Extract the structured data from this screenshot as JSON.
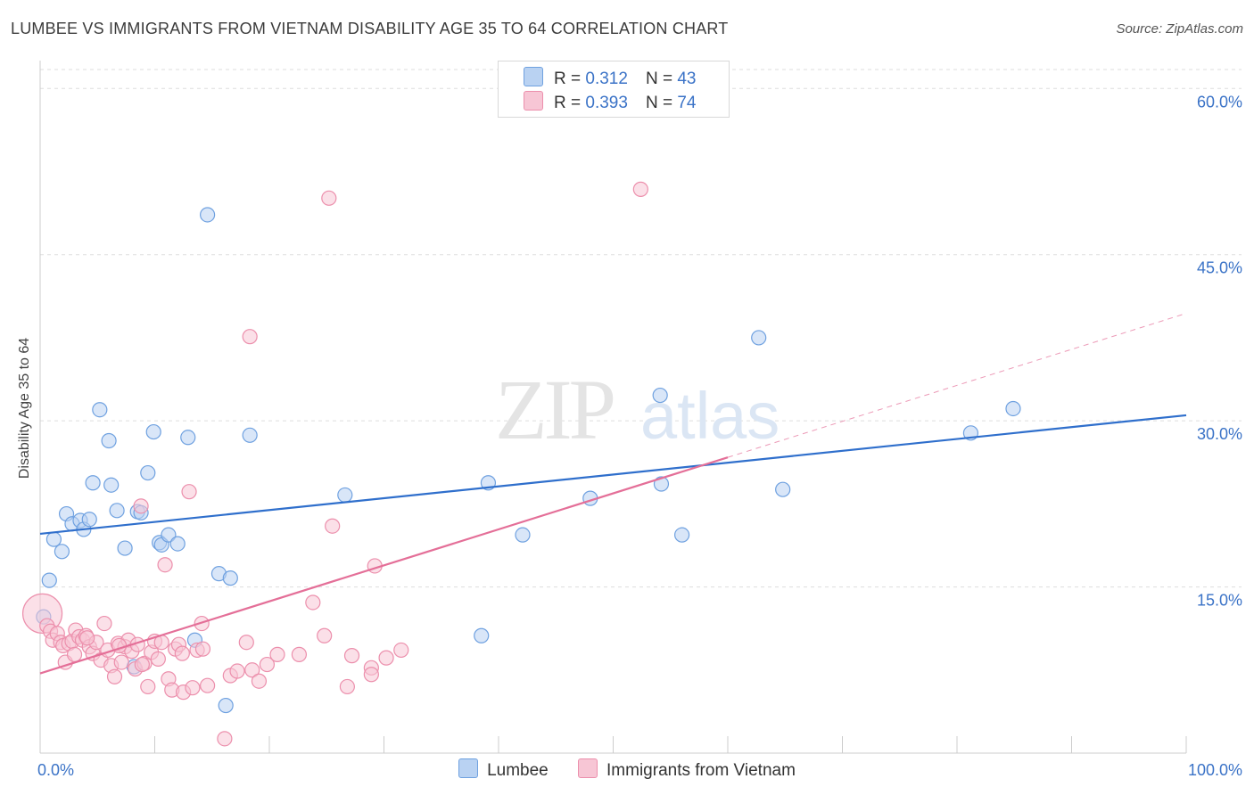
{
  "title": "LUMBEE VS IMMIGRANTS FROM VIETNAM DISABILITY AGE 35 TO 64 CORRELATION CHART",
  "source": "Source: ZipAtlas.com",
  "watermark": {
    "zip": "ZIP",
    "atlas": "atlas"
  },
  "legend": {
    "r_label": "R =",
    "n_label": "N =",
    "series": [
      {
        "r": "0.312",
        "n": "43"
      },
      {
        "r": "0.393",
        "n": "74"
      }
    ]
  },
  "chart_data": {
    "type": "scatter",
    "title": "LUMBEE VS IMMIGRANTS FROM VIETNAM DISABILITY AGE 35 TO 64 CORRELATION CHART",
    "xlabel": "",
    "ylabel": "Disability Age 35 to 64",
    "xlim": [
      0,
      100
    ],
    "ylim": [
      0,
      63
    ],
    "x_tick_labels": [
      "0.0%",
      "100.0%"
    ],
    "y_ticks": [
      15,
      30,
      45,
      60
    ],
    "y_tick_labels": [
      "15.0%",
      "30.0%",
      "45.0%",
      "60.0%"
    ],
    "grid": true,
    "legend_position": "bottom",
    "series": [
      {
        "name": "Lumbee",
        "color": "#6fa1e0",
        "fill": "#b9d2f2",
        "trend_color": "#2f6fcc",
        "trend": {
          "x0": 0,
          "y0": 19.8,
          "x1": 100,
          "y1": 30.5
        },
        "points": [
          [
            0.3,
            12.3
          ],
          [
            0.8,
            15.6
          ],
          [
            1.2,
            19.3
          ],
          [
            1.9,
            18.2
          ],
          [
            2.3,
            21.6
          ],
          [
            2.8,
            20.7
          ],
          [
            3.5,
            21.0
          ],
          [
            3.8,
            20.2
          ],
          [
            4.3,
            21.1
          ],
          [
            4.6,
            24.4
          ],
          [
            5.2,
            31.0
          ],
          [
            6.0,
            28.2
          ],
          [
            6.2,
            24.2
          ],
          [
            6.7,
            21.9
          ],
          [
            7.4,
            18.5
          ],
          [
            8.2,
            7.8
          ],
          [
            8.5,
            21.8
          ],
          [
            8.8,
            21.7
          ],
          [
            9.4,
            25.3
          ],
          [
            9.9,
            29.0
          ],
          [
            10.4,
            19.0
          ],
          [
            10.6,
            18.8
          ],
          [
            11.2,
            19.7
          ],
          [
            12.0,
            18.9
          ],
          [
            12.9,
            28.5
          ],
          [
            13.5,
            10.2
          ],
          [
            14.6,
            48.6
          ],
          [
            15.6,
            16.2
          ],
          [
            16.2,
            4.3
          ],
          [
            16.6,
            15.8
          ],
          [
            18.3,
            28.7
          ],
          [
            26.6,
            23.3
          ],
          [
            38.5,
            10.6
          ],
          [
            39.1,
            24.4
          ],
          [
            42.1,
            19.7
          ],
          [
            48.0,
            23.0
          ],
          [
            54.1,
            32.3
          ],
          [
            54.2,
            24.3
          ],
          [
            56.0,
            19.7
          ],
          [
            62.7,
            37.5
          ],
          [
            64.8,
            23.8
          ],
          [
            81.2,
            28.9
          ],
          [
            84.9,
            31.1
          ]
        ]
      },
      {
        "name": "Immigrants from Vietnam",
        "color": "#ec8fac",
        "fill": "#f7c6d5",
        "trend_color": "#e46f98",
        "trend": {
          "x0": 0,
          "y0": 7.2,
          "x1": 60,
          "y1": 26.7
        },
        "trend_ext": {
          "x0": 60,
          "y0": 26.7,
          "x1": 100,
          "y1": 39.7
        },
        "big_point": [
          0.2,
          12.6
        ],
        "points": [
          [
            0.6,
            11.5
          ],
          [
            0.9,
            11.0
          ],
          [
            1.1,
            10.2
          ],
          [
            1.5,
            10.8
          ],
          [
            1.8,
            10.0
          ],
          [
            2.0,
            9.7
          ],
          [
            2.2,
            8.2
          ],
          [
            2.5,
            9.9
          ],
          [
            2.8,
            10.1
          ],
          [
            3.1,
            11.1
          ],
          [
            3.4,
            10.5
          ],
          [
            3.7,
            10.2
          ],
          [
            4.0,
            10.6
          ],
          [
            4.3,
            9.6
          ],
          [
            4.6,
            9.0
          ],
          [
            4.9,
            10.0
          ],
          [
            5.3,
            8.4
          ],
          [
            5.6,
            11.7
          ],
          [
            5.9,
            9.3
          ],
          [
            6.2,
            7.9
          ],
          [
            6.5,
            6.9
          ],
          [
            6.8,
            9.9
          ],
          [
            7.1,
            8.2
          ],
          [
            7.4,
            9.6
          ],
          [
            7.7,
            10.2
          ],
          [
            8.0,
            9.2
          ],
          [
            8.3,
            7.6
          ],
          [
            8.5,
            9.8
          ],
          [
            8.8,
            22.3
          ],
          [
            9.1,
            8.1
          ],
          [
            9.4,
            6.0
          ],
          [
            9.7,
            9.1
          ],
          [
            10.0,
            10.1
          ],
          [
            10.3,
            8.5
          ],
          [
            10.6,
            10.0
          ],
          [
            10.9,
            17.0
          ],
          [
            11.2,
            6.7
          ],
          [
            11.5,
            5.7
          ],
          [
            11.8,
            9.4
          ],
          [
            12.1,
            9.8
          ],
          [
            12.5,
            5.5
          ],
          [
            13.0,
            23.6
          ],
          [
            13.3,
            5.9
          ],
          [
            13.7,
            9.3
          ],
          [
            14.1,
            11.7
          ],
          [
            14.6,
            6.1
          ],
          [
            16.1,
            1.3
          ],
          [
            16.6,
            7.0
          ],
          [
            17.2,
            7.4
          ],
          [
            18.0,
            10.0
          ],
          [
            18.5,
            7.5
          ],
          [
            18.3,
            37.6
          ],
          [
            19.1,
            6.5
          ],
          [
            19.8,
            8.0
          ],
          [
            20.7,
            8.9
          ],
          [
            22.6,
            8.9
          ],
          [
            23.8,
            13.6
          ],
          [
            24.8,
            10.6
          ],
          [
            25.2,
            50.1
          ],
          [
            25.5,
            20.5
          ],
          [
            26.8,
            6.0
          ],
          [
            27.2,
            8.8
          ],
          [
            28.9,
            7.7
          ],
          [
            28.9,
            7.1
          ],
          [
            29.2,
            16.9
          ],
          [
            30.2,
            8.6
          ],
          [
            31.5,
            9.3
          ],
          [
            52.4,
            50.9
          ],
          [
            3.0,
            8.9
          ],
          [
            6.9,
            9.7
          ],
          [
            12.4,
            9.0
          ],
          [
            14.2,
            9.4
          ],
          [
            8.9,
            8.0
          ],
          [
            4.1,
            10.4
          ]
        ]
      }
    ]
  }
}
